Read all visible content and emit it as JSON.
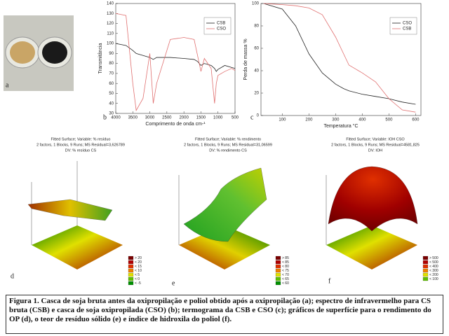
{
  "panel_labels": [
    "a",
    "b",
    "c",
    "d",
    "e",
    "f"
  ],
  "chart_data": [
    {
      "type": "line",
      "xlabel": "Comprimento de onda cm-¹",
      "ylabel": "Transmitância",
      "x": [
        4000,
        3700,
        3500,
        3400,
        3200,
        3000,
        2900,
        2800,
        2400,
        2000,
        1700,
        1600,
        1500,
        1400,
        1200,
        1100,
        1050,
        1000,
        800,
        600,
        500
      ],
      "xlim": [
        4000,
        500
      ],
      "xticks": [
        4000,
        3500,
        3000,
        2500,
        2000,
        1500,
        1000,
        500
      ],
      "ylim": [
        30,
        140
      ],
      "yticks": [
        30,
        40,
        50,
        60,
        70,
        80,
        90,
        100,
        110,
        120,
        130,
        140
      ],
      "legend": "upper right",
      "series": [
        {
          "name": "CSB",
          "color": "#222222",
          "values": [
            100,
            98,
            93,
            90,
            88,
            86,
            84,
            86,
            86,
            85,
            84,
            82,
            78,
            80,
            78,
            75,
            72,
            74,
            78,
            76,
            75
          ]
        },
        {
          "name": "CSO",
          "color": "#e07070",
          "values": [
            130,
            128,
            60,
            33,
            45,
            90,
            40,
            60,
            104,
            106,
            104,
            88,
            72,
            85,
            75,
            40,
            60,
            68,
            72,
            75,
            73
          ]
        }
      ]
    },
    {
      "type": "line",
      "xlabel": "Temperatura °C",
      "ylabel": "Perda de massa %",
      "x": [
        30,
        100,
        150,
        200,
        250,
        300,
        330,
        350,
        400,
        450,
        500,
        550,
        600
      ],
      "xlim": [
        20,
        620
      ],
      "xticks": [
        100,
        200,
        300,
        400,
        500,
        600
      ],
      "ylim": [
        0,
        100
      ],
      "yticks": [
        0,
        20,
        40,
        60,
        80,
        100
      ],
      "legend": "upper right",
      "series": [
        {
          "name": "CSO",
          "color": "#222222",
          "values": [
            100,
            95,
            80,
            55,
            38,
            28,
            24,
            22,
            19,
            17,
            15,
            12,
            10
          ]
        },
        {
          "name": "CSB",
          "color": "#e07070",
          "values": [
            100,
            99,
            98,
            96,
            90,
            70,
            55,
            45,
            38,
            30,
            15,
            5,
            3
          ]
        }
      ]
    }
  ],
  "surfaces": [
    {
      "title": [
        "Fitted Surface; Variable: % resíduo",
        "2 factors, 1 Blocks, 9 Runs; MS Residual=3,626789",
        "DV: % resíduo CS"
      ],
      "legend": {
        "labels": [
          "> 20",
          "< 20",
          "< 15",
          "< 10",
          "< 5",
          "< 0",
          "< -5"
        ],
        "colors": [
          "#7a0000",
          "#b00000",
          "#e03000",
          "#f08000",
          "#e0e000",
          "#60c000",
          "#009000"
        ]
      }
    },
    {
      "title": [
        "Fitted Surface; Variable: % rendimento",
        "2 factors, 1 Blocks, 9 Runs; MS Residual=31,06599",
        "DV: % rendimento CS"
      ],
      "legend": {
        "labels": [
          "> 85",
          "< 85",
          "< 80",
          "< 75",
          "< 70",
          "< 65",
          "< 60"
        ],
        "colors": [
          "#7a0000",
          "#b00000",
          "#e03000",
          "#f08000",
          "#e0e000",
          "#60c000",
          "#009000"
        ]
      }
    },
    {
      "title": [
        "Fitted Surface; Variable: IOH CSO",
        "2 factors, 1 Blocks, 9 Runs; MS Residual=4581,825",
        "DV: IOH"
      ],
      "legend": {
        "labels": [
          "> 500",
          "< 500",
          "< 400",
          "< 300",
          "< 200",
          "< 100"
        ],
        "colors": [
          "#7a0000",
          "#b00000",
          "#e03000",
          "#f08000",
          "#e0e000",
          "#60c000"
        ]
      }
    }
  ],
  "caption": "Figura 1. Casca de soja bruta antes da oxipropilação e poliol obtido após a oxipropilação (a); espectro de infravermelho para CS bruta (CSB) e casca de soja oxipropilada (CSO) (b); termograma da CSB e CSO (c); gráficos de superfície para o rendimento do OP (d), o teor de resíduo sólido (e) e índice de hidroxila do poliol (f)."
}
